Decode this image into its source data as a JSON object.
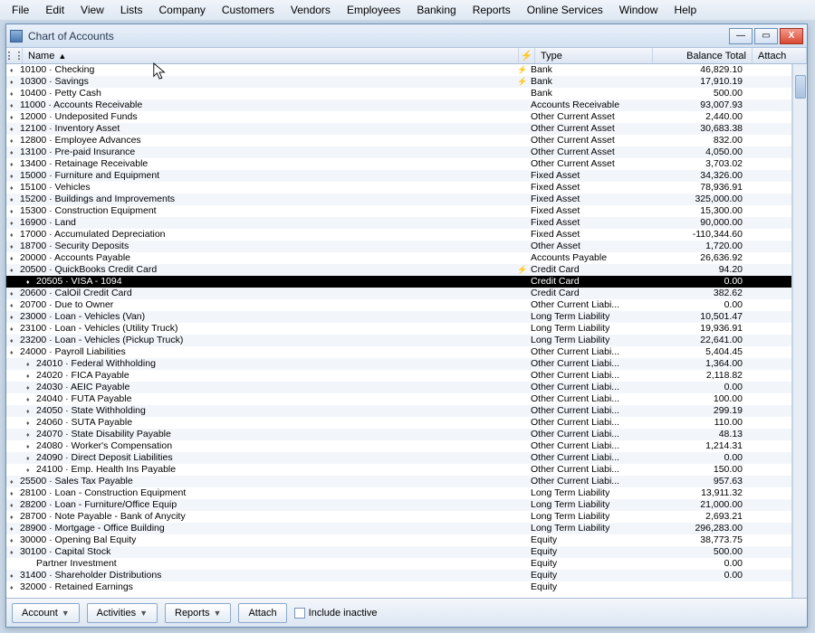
{
  "menubar": [
    "File",
    "Edit",
    "View",
    "Lists",
    "Company",
    "Customers",
    "Vendors",
    "Employees",
    "Banking",
    "Reports",
    "Online Services",
    "Window",
    "Help"
  ],
  "window": {
    "title": "Chart of Accounts",
    "min": "—",
    "max": "▭",
    "close": "X"
  },
  "columns": {
    "name": "Name",
    "type": "Type",
    "balance": "Balance Total",
    "attach": "Attach"
  },
  "bottombar": {
    "account": "Account",
    "activities": "Activities",
    "reports": "Reports",
    "attach": "Attach",
    "include_inactive": "Include inactive"
  },
  "colors": {
    "stripe": "#f2f6fb",
    "selection": "#000000",
    "header_grad_top": "#f4f7fb",
    "header_grad_bot": "#dce6f2"
  },
  "rows": [
    {
      "name": "10100 · Checking",
      "type": "Bank",
      "bal": "46,829.10",
      "flag": "⚡"
    },
    {
      "name": "10300 · Savings",
      "type": "Bank",
      "bal": "17,910.19",
      "flag": "⚡"
    },
    {
      "name": "10400 · Petty Cash",
      "type": "Bank",
      "bal": "500.00"
    },
    {
      "name": "11000 · Accounts Receivable",
      "type": "Accounts Receivable",
      "bal": "93,007.93"
    },
    {
      "name": "12000 · Undeposited Funds",
      "type": "Other Current Asset",
      "bal": "2,440.00"
    },
    {
      "name": "12100 · Inventory Asset",
      "type": "Other Current Asset",
      "bal": "30,683.38"
    },
    {
      "name": "12800 · Employee Advances",
      "type": "Other Current Asset",
      "bal": "832.00"
    },
    {
      "name": "13100 · Pre-paid Insurance",
      "type": "Other Current Asset",
      "bal": "4,050.00"
    },
    {
      "name": "13400 · Retainage Receivable",
      "type": "Other Current Asset",
      "bal": "3,703.02"
    },
    {
      "name": "15000 · Furniture and Equipment",
      "type": "Fixed Asset",
      "bal": "34,326.00"
    },
    {
      "name": "15100 · Vehicles",
      "type": "Fixed Asset",
      "bal": "78,936.91"
    },
    {
      "name": "15200 · Buildings and Improvements",
      "type": "Fixed Asset",
      "bal": "325,000.00"
    },
    {
      "name": "15300 · Construction Equipment",
      "type": "Fixed Asset",
      "bal": "15,300.00"
    },
    {
      "name": "16900 · Land",
      "type": "Fixed Asset",
      "bal": "90,000.00"
    },
    {
      "name": "17000 · Accumulated Depreciation",
      "type": "Fixed Asset",
      "bal": "-110,344.60"
    },
    {
      "name": "18700 · Security Deposits",
      "type": "Other Asset",
      "bal": "1,720.00"
    },
    {
      "name": "20000 · Accounts Payable",
      "type": "Accounts Payable",
      "bal": "26,636.92"
    },
    {
      "name": "20500 · QuickBooks Credit Card",
      "type": "Credit Card",
      "bal": "94.20",
      "flag": "⚡"
    },
    {
      "name": "20505 · VISA - 1094",
      "type": "Credit Card",
      "bal": "0.00",
      "selected": true,
      "indent": 1
    },
    {
      "name": "20600 · CalOil Credit Card",
      "type": "Credit Card",
      "bal": "382.62"
    },
    {
      "name": "20700 · Due to Owner",
      "type": "Other Current Liabi...",
      "bal": "0.00"
    },
    {
      "name": "23000 · Loan - Vehicles (Van)",
      "type": "Long Term Liability",
      "bal": "10,501.47"
    },
    {
      "name": "23100 · Loan - Vehicles (Utility Truck)",
      "type": "Long Term Liability",
      "bal": "19,936.91"
    },
    {
      "name": "23200 · Loan - Vehicles (Pickup Truck)",
      "type": "Long Term Liability",
      "bal": "22,641.00"
    },
    {
      "name": "24000 · Payroll Liabilities",
      "type": "Other Current Liabi...",
      "bal": "5,404.45"
    },
    {
      "name": "24010 · Federal Withholding",
      "type": "Other Current Liabi...",
      "bal": "1,364.00",
      "indent": 1
    },
    {
      "name": "24020 · FICA Payable",
      "type": "Other Current Liabi...",
      "bal": "2,118.82",
      "indent": 1
    },
    {
      "name": "24030 · AEIC Payable",
      "type": "Other Current Liabi...",
      "bal": "0.00",
      "indent": 1
    },
    {
      "name": "24040 · FUTA Payable",
      "type": "Other Current Liabi...",
      "bal": "100.00",
      "indent": 1
    },
    {
      "name": "24050 · State Withholding",
      "type": "Other Current Liabi...",
      "bal": "299.19",
      "indent": 1
    },
    {
      "name": "24060 · SUTA Payable",
      "type": "Other Current Liabi...",
      "bal": "110.00",
      "indent": 1
    },
    {
      "name": "24070 · State Disability Payable",
      "type": "Other Current Liabi...",
      "bal": "48.13",
      "indent": 1
    },
    {
      "name": "24080 · Worker's Compensation",
      "type": "Other Current Liabi...",
      "bal": "1,214.31",
      "indent": 1
    },
    {
      "name": "24090 · Direct Deposit Liabilities",
      "type": "Other Current Liabi...",
      "bal": "0.00",
      "indent": 1
    },
    {
      "name": "24100 · Emp. Health Ins Payable",
      "type": "Other Current Liabi...",
      "bal": "150.00",
      "indent": 1
    },
    {
      "name": "25500 · Sales Tax Payable",
      "type": "Other Current Liabi...",
      "bal": "957.63"
    },
    {
      "name": "28100 · Loan - Construction Equipment",
      "type": "Long Term Liability",
      "bal": "13,911.32"
    },
    {
      "name": "28200 · Loan - Furniture/Office Equip",
      "type": "Long Term Liability",
      "bal": "21,000.00"
    },
    {
      "name": "28700 · Note Payable - Bank of Anycity",
      "type": "Long Term Liability",
      "bal": "2,693.21"
    },
    {
      "name": "28900 · Mortgage - Office Building",
      "type": "Long Term Liability",
      "bal": "296,283.00"
    },
    {
      "name": "30000 · Opening Bal Equity",
      "type": "Equity",
      "bal": "38,773.75"
    },
    {
      "name": "30100 · Capital Stock",
      "type": "Equity",
      "bal": "500.00"
    },
    {
      "name": "Partner Investment",
      "type": "Equity",
      "bal": "0.00",
      "indent": 1,
      "noexp": true
    },
    {
      "name": "31400 · Shareholder Distributions",
      "type": "Equity",
      "bal": "0.00"
    },
    {
      "name": "32000 · Retained Earnings",
      "type": "Equity",
      "bal": ""
    }
  ]
}
